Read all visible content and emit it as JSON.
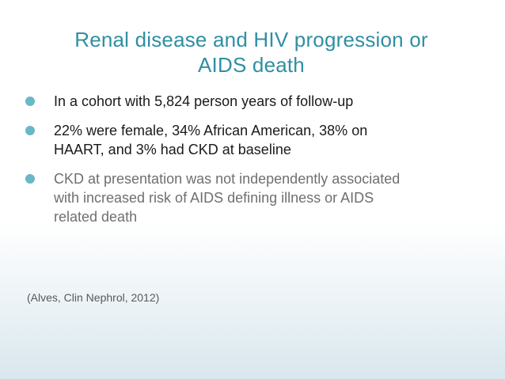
{
  "slide": {
    "title_lines": [
      "Renal disease and HIV progression or",
      "AIDS death"
    ],
    "bullets": [
      {
        "lines": [
          "In a cohort with 5,824 person years of follow-up"
        ]
      },
      {
        "lines": [
          "22% were female, 34% African American, 38% on",
          "HAART, and 3% had CKD at baseline"
        ]
      },
      {
        "lines": [
          "CKD at presentation was not independently associated",
          "with increased risk of AIDS defining illness or AIDS",
          "related death"
        ]
      }
    ],
    "citation": "(Alves, Clin Nephrol, 2012)"
  },
  "colors": {
    "title": "#2f8fa3",
    "bullet_marker": "#6ab7c7",
    "body_text": "#1a1a1a",
    "muted_text": "#6f6f6f"
  },
  "icons": {
    "bullet_marker": "filled-circle"
  }
}
